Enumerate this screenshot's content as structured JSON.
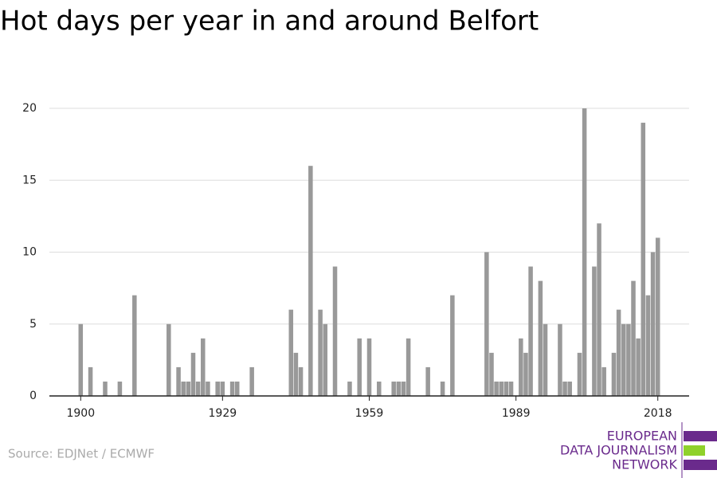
{
  "chart_data": {
    "type": "bar",
    "title": "Hot days per year in and around Belfort",
    "x": [
      1900,
      1902,
      1905,
      1908,
      1911,
      1918,
      1920,
      1921,
      1922,
      1923,
      1924,
      1925,
      1926,
      1928,
      1929,
      1931,
      1932,
      1935,
      1943,
      1944,
      1945,
      1947,
      1949,
      1950,
      1952,
      1955,
      1957,
      1959,
      1961,
      1964,
      1965,
      1966,
      1967,
      1971,
      1974,
      1976,
      1983,
      1984,
      1985,
      1986,
      1987,
      1988,
      1990,
      1991,
      1992,
      1994,
      1995,
      1998,
      1999,
      2000,
      2002,
      2003,
      2005,
      2006,
      2007,
      2009,
      2010,
      2011,
      2012,
      2013,
      2014,
      2015,
      2016,
      2017,
      2018
    ],
    "values": [
      5,
      2,
      1,
      1,
      7,
      5,
      2,
      1,
      1,
      3,
      1,
      4,
      1,
      1,
      1,
      1,
      1,
      2,
      6,
      3,
      2,
      16,
      6,
      5,
      9,
      1,
      4,
      4,
      1,
      1,
      1,
      1,
      4,
      2,
      1,
      7,
      10,
      3,
      1,
      1,
      1,
      1,
      4,
      3,
      9,
      8,
      5,
      5,
      1,
      1,
      3,
      20,
      9,
      12,
      2,
      3,
      6,
      5,
      5,
      8,
      4,
      19,
      7,
      10,
      11
    ],
    "color": "#999999",
    "xlim": [
      1893.6,
      2024.4
    ],
    "xticks": [
      1900,
      1929,
      1959,
      1989,
      2018
    ],
    "ylim": [
      0,
      20
    ],
    "yticks": [
      0,
      5,
      10,
      15,
      20
    ],
    "grid": true,
    "source": "Source: EDJNet / ECMWF",
    "logo": [
      "EUROPEAN",
      "DATA JOURNALISM",
      "NETWORK"
    ]
  }
}
